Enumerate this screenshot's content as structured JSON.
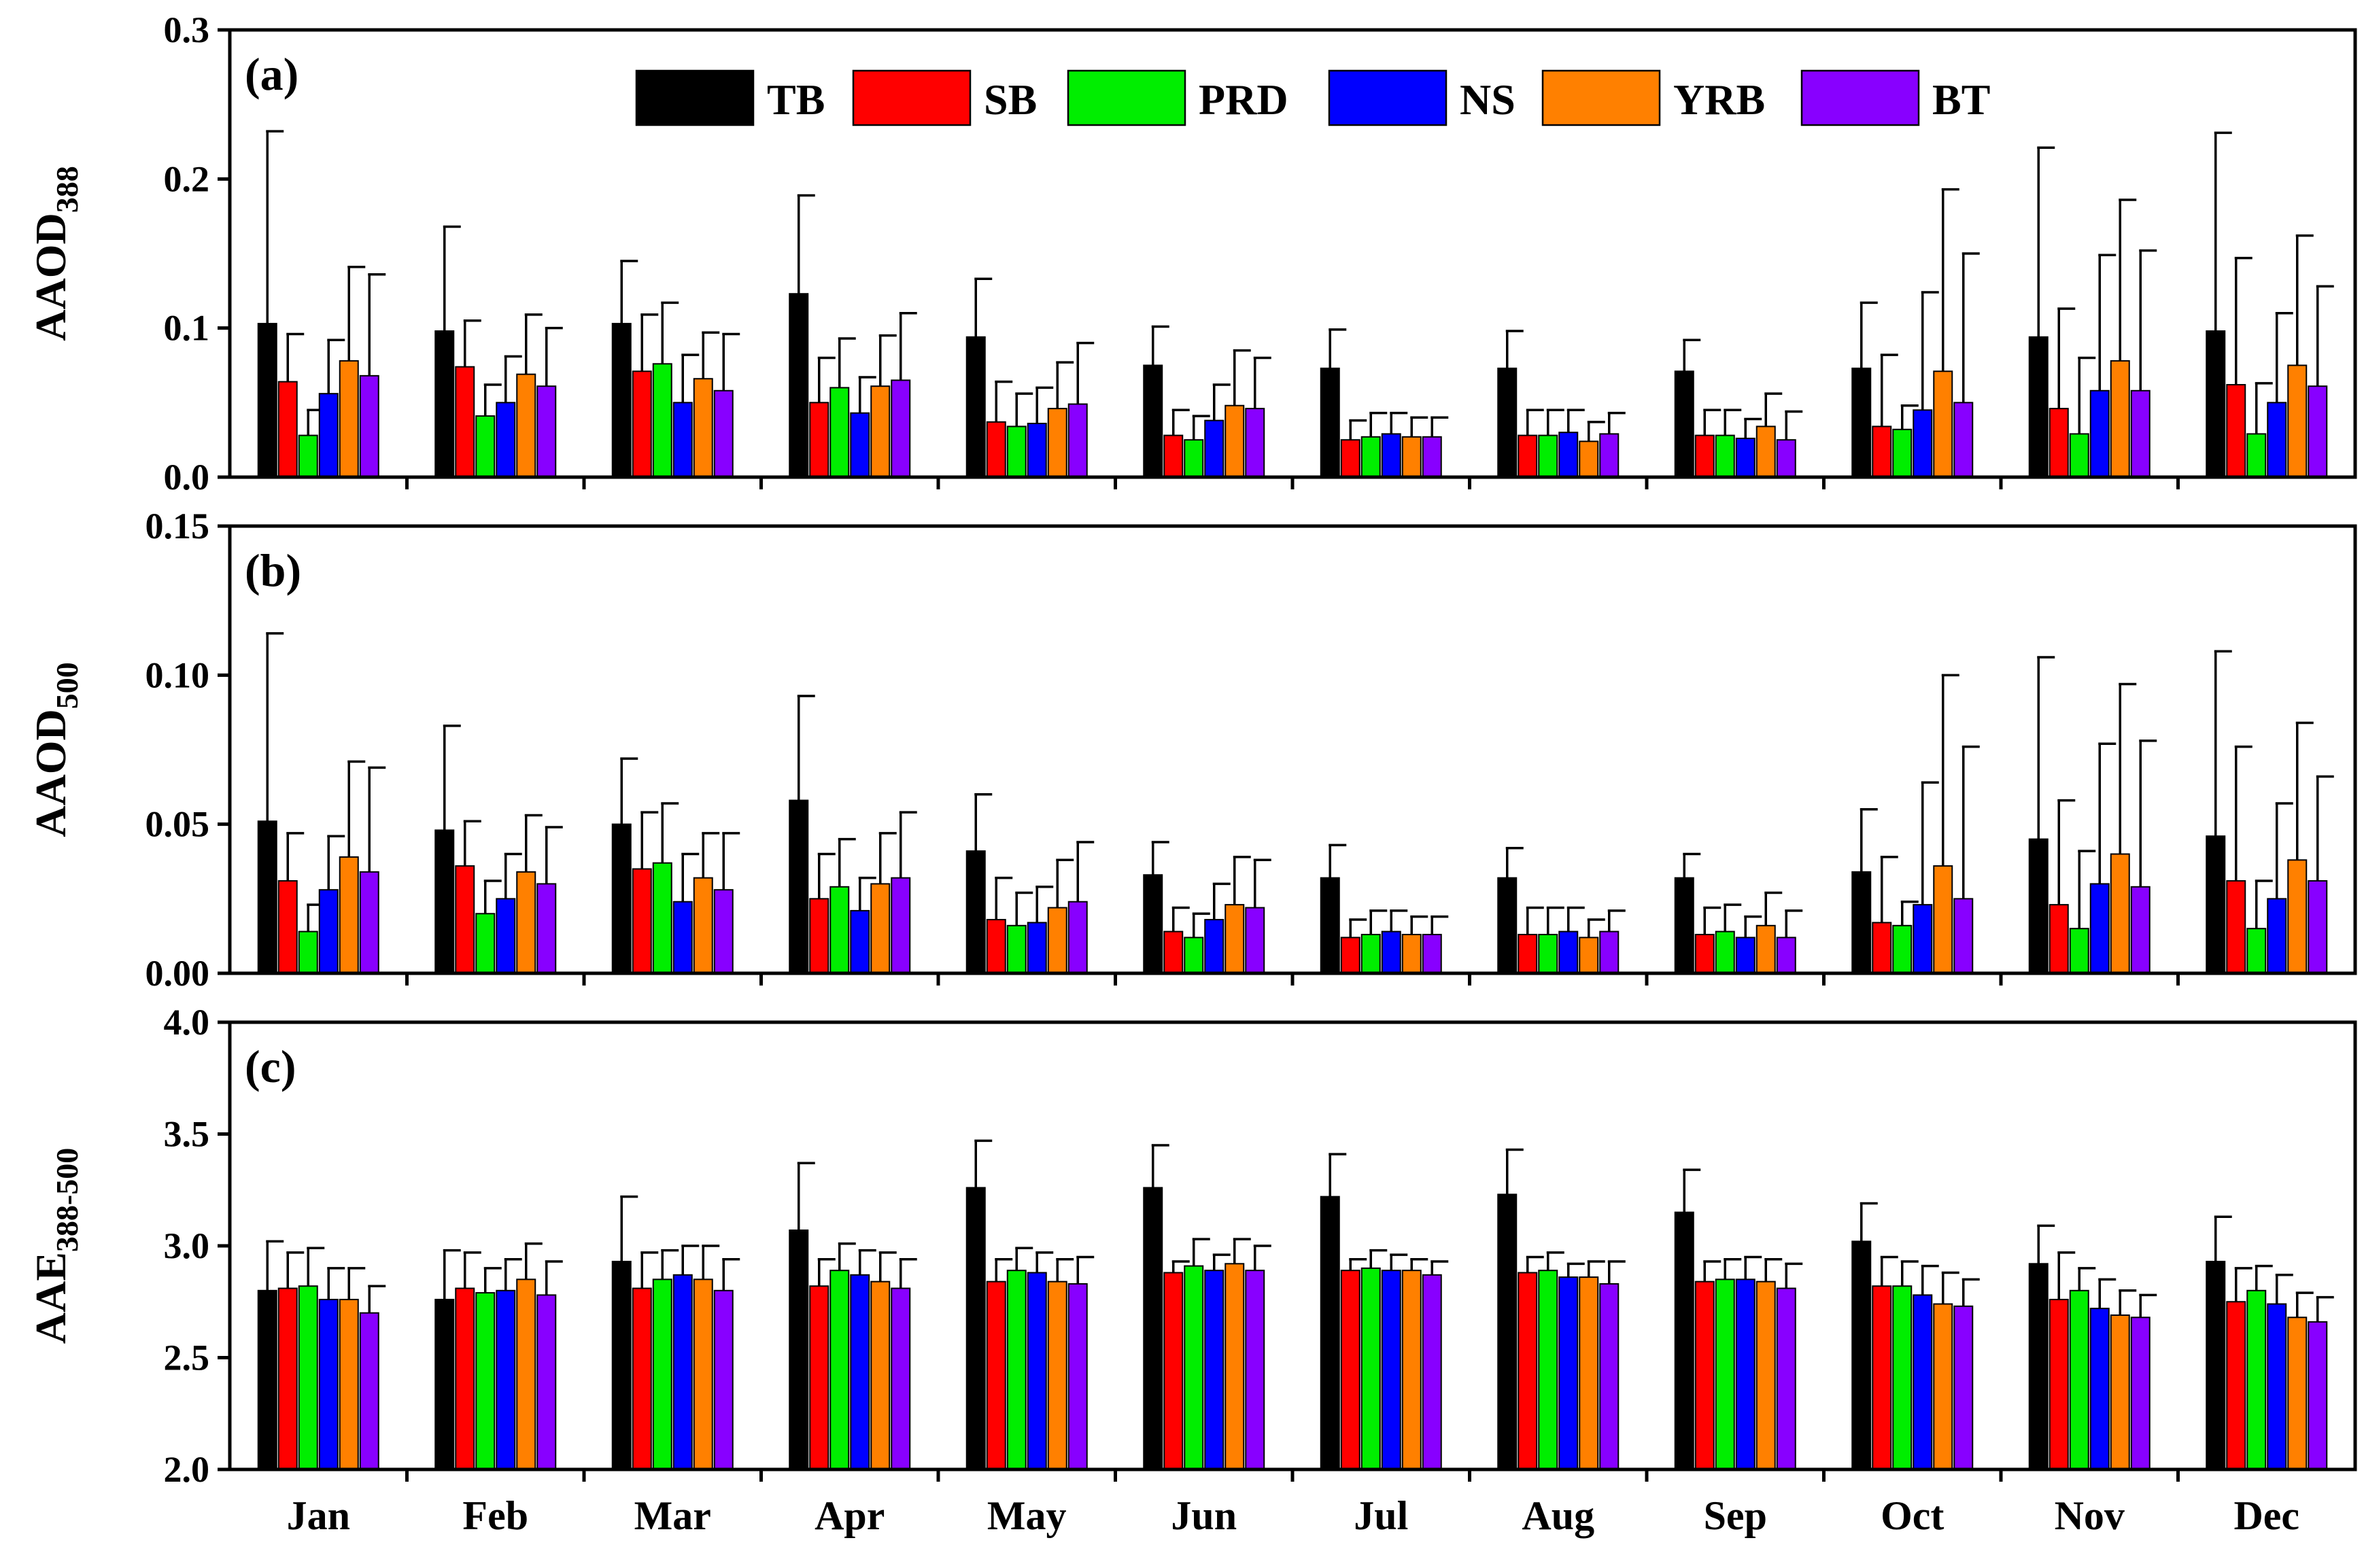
{
  "chart_data": {
    "type": "bar",
    "categories": [
      "Jan",
      "Feb",
      "Mar",
      "Apr",
      "May",
      "Jun",
      "Jul",
      "Aug",
      "Sep",
      "Oct",
      "Nov",
      "Dec"
    ],
    "legend": [
      {
        "name": "TB",
        "color": "#000000"
      },
      {
        "name": "SB",
        "color": "#ff0000"
      },
      {
        "name": "PRD",
        "color": "#00ee00"
      },
      {
        "name": "NS",
        "color": "#0000ff"
      },
      {
        "name": "YRB",
        "color": "#ff8000"
      },
      {
        "name": "BT",
        "color": "#8800ff"
      }
    ],
    "legend_position": "top",
    "panels": [
      {
        "tag": "(a)",
        "ylabel_main": "AAOD",
        "ylabel_sub": "388",
        "ylim": [
          0,
          0.3
        ],
        "ticks": [
          "0.0",
          "0.1",
          "0.2",
          "0.3"
        ],
        "tick_values": [
          0,
          0.1,
          0.2,
          0.3
        ],
        "series": [
          {
            "name": "TB",
            "values": [
              0.103,
              0.098,
              0.103,
              0.123,
              0.094,
              0.075,
              0.073,
              0.073,
              0.071,
              0.073,
              0.094,
              0.098
            ],
            "errors": [
              0.129,
              0.07,
              0.042,
              0.066,
              0.039,
              0.026,
              0.026,
              0.025,
              0.021,
              0.044,
              0.127,
              0.133
            ]
          },
          {
            "name": "SB",
            "values": [
              0.064,
              0.074,
              0.071,
              0.05,
              0.037,
              0.028,
              0.025,
              0.028,
              0.028,
              0.034,
              0.046,
              0.062
            ],
            "errors": [
              0.032,
              0.031,
              0.038,
              0.03,
              0.027,
              0.017,
              0.013,
              0.017,
              0.017,
              0.048,
              0.067,
              0.085
            ]
          },
          {
            "name": "PRD",
            "values": [
              0.028,
              0.041,
              0.076,
              0.06,
              0.034,
              0.025,
              0.027,
              0.028,
              0.028,
              0.032,
              0.029,
              0.029
            ],
            "errors": [
              0.017,
              0.021,
              0.041,
              0.033,
              0.022,
              0.016,
              0.016,
              0.017,
              0.017,
              0.016,
              0.051,
              0.034
            ]
          },
          {
            "name": "NS",
            "values": [
              0.056,
              0.05,
              0.05,
              0.043,
              0.036,
              0.038,
              0.029,
              0.03,
              0.026,
              0.045,
              0.058,
              0.05
            ],
            "errors": [
              0.036,
              0.031,
              0.032,
              0.024,
              0.024,
              0.024,
              0.014,
              0.015,
              0.013,
              0.079,
              0.091,
              0.06
            ]
          },
          {
            "name": "YRB",
            "values": [
              0.078,
              0.069,
              0.066,
              0.061,
              0.046,
              0.048,
              0.027,
              0.024,
              0.034,
              0.071,
              0.078,
              0.075
            ],
            "errors": [
              0.063,
              0.04,
              0.031,
              0.034,
              0.031,
              0.037,
              0.013,
              0.013,
              0.022,
              0.122,
              0.108,
              0.087
            ]
          },
          {
            "name": "BT",
            "values": [
              0.068,
              0.061,
              0.058,
              0.065,
              0.049,
              0.046,
              0.027,
              0.029,
              0.025,
              0.05,
              0.058,
              0.061
            ],
            "errors": [
              0.068,
              0.039,
              0.038,
              0.045,
              0.041,
              0.034,
              0.013,
              0.014,
              0.019,
              0.1,
              0.094,
              0.067
            ]
          }
        ]
      },
      {
        "tag": "(b)",
        "ylabel_main": "AAOD",
        "ylabel_sub": "500",
        "ylim": [
          0,
          0.15
        ],
        "ticks": [
          "0.00",
          "0.05",
          "0.10",
          "0.15"
        ],
        "tick_values": [
          0,
          0.05,
          0.1,
          0.15
        ],
        "series": [
          {
            "name": "TB",
            "values": [
              0.051,
              0.048,
              0.05,
              0.058,
              0.041,
              0.033,
              0.032,
              0.032,
              0.032,
              0.034,
              0.045,
              0.046
            ],
            "errors": [
              0.063,
              0.035,
              0.022,
              0.035,
              0.019,
              0.011,
              0.011,
              0.01,
              0.008,
              0.021,
              0.061,
              0.062
            ]
          },
          {
            "name": "SB",
            "values": [
              0.031,
              0.036,
              0.035,
              0.025,
              0.018,
              0.014,
              0.012,
              0.013,
              0.013,
              0.017,
              0.023,
              0.031
            ],
            "errors": [
              0.016,
              0.015,
              0.019,
              0.015,
              0.014,
              0.008,
              0.006,
              0.009,
              0.009,
              0.022,
              0.035,
              0.045
            ]
          },
          {
            "name": "PRD",
            "values": [
              0.014,
              0.02,
              0.037,
              0.029,
              0.016,
              0.012,
              0.013,
              0.013,
              0.014,
              0.016,
              0.015,
              0.015
            ],
            "errors": [
              0.009,
              0.011,
              0.02,
              0.016,
              0.011,
              0.008,
              0.008,
              0.009,
              0.009,
              0.008,
              0.026,
              0.016
            ]
          },
          {
            "name": "NS",
            "values": [
              0.028,
              0.025,
              0.024,
              0.021,
              0.017,
              0.018,
              0.014,
              0.014,
              0.012,
              0.023,
              0.03,
              0.025
            ],
            "errors": [
              0.018,
              0.015,
              0.016,
              0.011,
              0.012,
              0.012,
              0.007,
              0.008,
              0.007,
              0.041,
              0.047,
              0.032
            ]
          },
          {
            "name": "YRB",
            "values": [
              0.039,
              0.034,
              0.032,
              0.03,
              0.022,
              0.023,
              0.013,
              0.012,
              0.016,
              0.036,
              0.04,
              0.038
            ],
            "errors": [
              0.032,
              0.019,
              0.015,
              0.017,
              0.016,
              0.016,
              0.006,
              0.006,
              0.011,
              0.064,
              0.057,
              0.046
            ]
          },
          {
            "name": "BT",
            "values": [
              0.034,
              0.03,
              0.028,
              0.032,
              0.024,
              0.022,
              0.013,
              0.014,
              0.012,
              0.025,
              0.029,
              0.031
            ],
            "errors": [
              0.035,
              0.019,
              0.019,
              0.022,
              0.02,
              0.016,
              0.006,
              0.007,
              0.009,
              0.051,
              0.049,
              0.035
            ]
          }
        ]
      },
      {
        "tag": "(c)",
        "ylabel_main": "AAE",
        "ylabel_sub": "388-500",
        "ylim": [
          2.0,
          4.0
        ],
        "ticks": [
          "2.0",
          "2.5",
          "3.0",
          "3.5",
          "4.0"
        ],
        "tick_values": [
          2.0,
          2.5,
          3.0,
          3.5,
          4.0
        ],
        "series": [
          {
            "name": "TB",
            "values": [
              2.8,
              2.76,
              2.93,
              3.07,
              3.26,
              3.26,
              3.22,
              3.23,
              3.15,
              3.02,
              2.92,
              2.93
            ],
            "errors": [
              0.22,
              0.22,
              0.29,
              0.3,
              0.21,
              0.19,
              0.19,
              0.2,
              0.19,
              0.17,
              0.17,
              0.2
            ]
          },
          {
            "name": "SB",
            "values": [
              2.81,
              2.81,
              2.81,
              2.82,
              2.84,
              2.88,
              2.89,
              2.88,
              2.84,
              2.82,
              2.76,
              2.75
            ],
            "errors": [
              0.16,
              0.16,
              0.16,
              0.12,
              0.1,
              0.05,
              0.05,
              0.07,
              0.09,
              0.13,
              0.21,
              0.15
            ]
          },
          {
            "name": "PRD",
            "values": [
              2.82,
              2.79,
              2.85,
              2.89,
              2.89,
              2.91,
              2.9,
              2.89,
              2.85,
              2.82,
              2.8,
              2.8
            ],
            "errors": [
              0.17,
              0.11,
              0.13,
              0.12,
              0.1,
              0.12,
              0.08,
              0.08,
              0.09,
              0.11,
              0.1,
              0.11
            ]
          },
          {
            "name": "NS",
            "values": [
              2.76,
              2.8,
              2.87,
              2.87,
              2.88,
              2.89,
              2.89,
              2.86,
              2.85,
              2.78,
              2.72,
              2.74
            ],
            "errors": [
              0.14,
              0.14,
              0.13,
              0.11,
              0.09,
              0.07,
              0.07,
              0.06,
              0.1,
              0.13,
              0.13,
              0.13
            ]
          },
          {
            "name": "YRB",
            "values": [
              2.76,
              2.85,
              2.85,
              2.84,
              2.84,
              2.92,
              2.89,
              2.86,
              2.84,
              2.74,
              2.69,
              2.68
            ],
            "errors": [
              0.14,
              0.16,
              0.15,
              0.13,
              0.1,
              0.11,
              0.05,
              0.07,
              0.1,
              0.14,
              0.11,
              0.11
            ]
          },
          {
            "name": "BT",
            "values": [
              2.7,
              2.78,
              2.8,
              2.81,
              2.83,
              2.89,
              2.87,
              2.83,
              2.81,
              2.73,
              2.68,
              2.66
            ],
            "errors": [
              0.12,
              0.15,
              0.14,
              0.13,
              0.12,
              0.11,
              0.06,
              0.1,
              0.11,
              0.12,
              0.1,
              0.11
            ]
          }
        ]
      }
    ]
  }
}
